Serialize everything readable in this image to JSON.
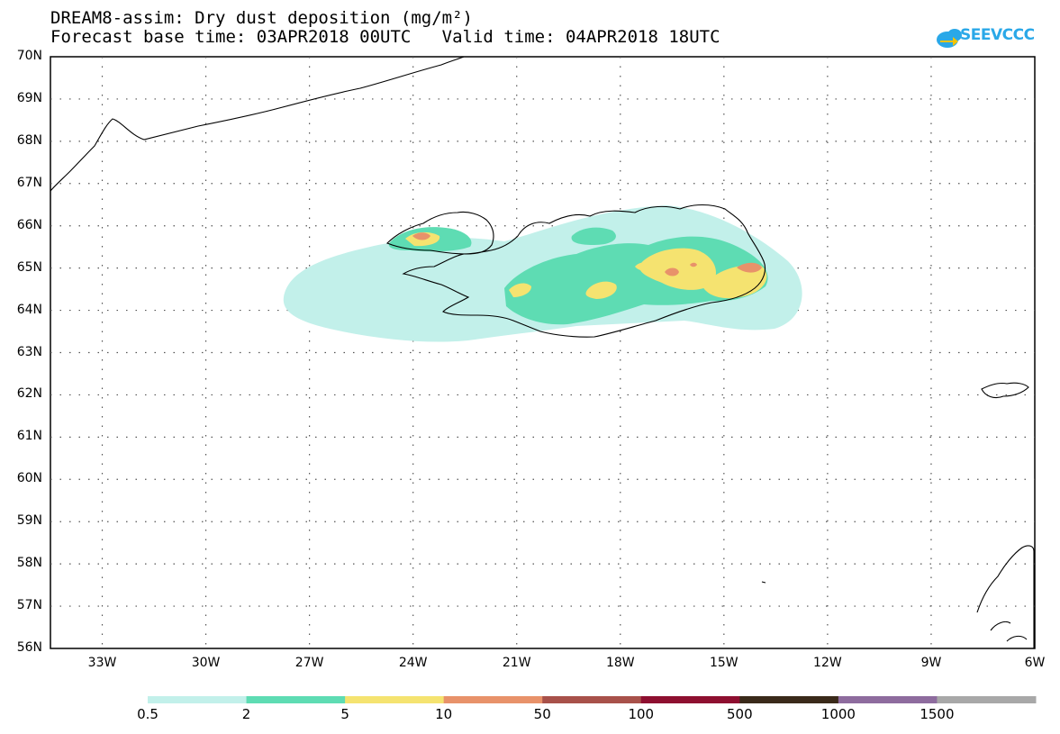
{
  "title": {
    "line1": "DREAM8-assim: Dry dust deposition (mg/m²)",
    "line2": "Forecast base time: 03APR2018 00UTC   Valid time: 04APR2018 18UTC"
  },
  "logo": {
    "text": "SEEVCCC",
    "icon": "cloud-arrow-icon",
    "color": "#2aa8e8"
  },
  "map": {
    "lat_range": [
      56,
      70
    ],
    "lon_range": [
      -34.5,
      -6
    ],
    "lat_labels": [
      "70N",
      "69N",
      "68N",
      "67N",
      "66N",
      "65N",
      "64N",
      "63N",
      "62N",
      "61N",
      "60N",
      "59N",
      "58N",
      "57N",
      "56N"
    ],
    "lon_labels": [
      "33W",
      "30W",
      "27W",
      "24W",
      "21W",
      "18W",
      "15W",
      "12W",
      "9W",
      "6W"
    ],
    "grid": "dotted"
  },
  "colorbar": {
    "labels": [
      "0.5",
      "2",
      "5",
      "10",
      "50",
      "100",
      "500",
      "1000",
      "1500"
    ],
    "colors": [
      "#c2f0ea",
      "#5edcb3",
      "#f5e370",
      "#e8926a",
      "#a8514a",
      "#8e0f30",
      "#3a2a1a",
      "#8e6c9e",
      "#a8a8a8"
    ]
  }
}
